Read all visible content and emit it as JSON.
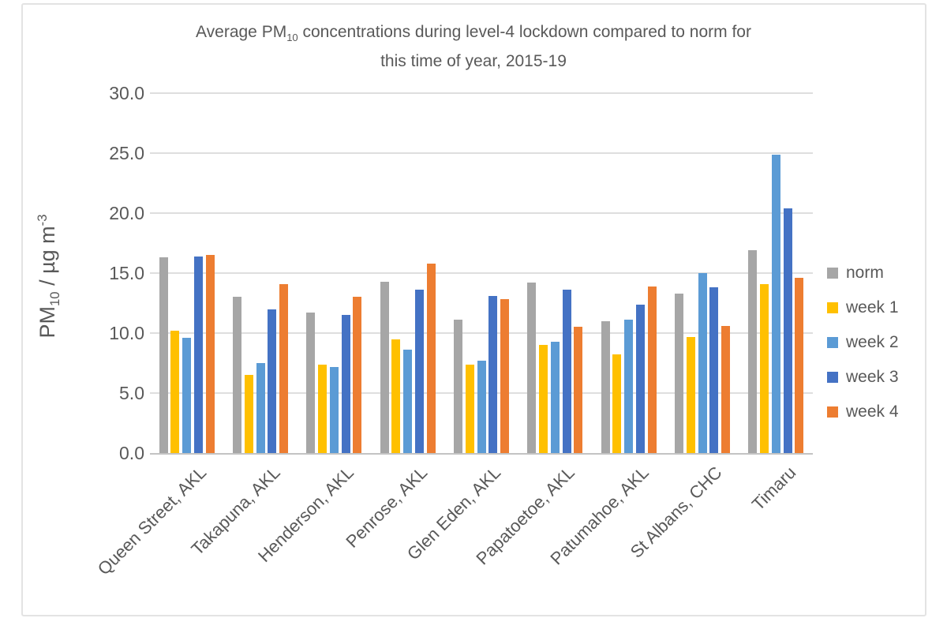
{
  "page": {
    "background": "#ffffff",
    "frame_border_color": "#e3e3e3",
    "text_color": "#595959",
    "gridline_color": "#dedede",
    "axis_line_color": "#c3c3c3"
  },
  "title": {
    "line1_prefix": "Average PM",
    "line1_sub": "10",
    "line1_rest": " concentrations during level-4 lockdown compared to norm for",
    "line2": "this time of year, 2015-19"
  },
  "y_axis": {
    "label_prefix": "PM",
    "label_sub": "10",
    "label_mid": " / µg m",
    "label_sup": "-3",
    "ticks": [
      "30.0",
      "25.0",
      "20.0",
      "15.0",
      "10.0",
      "5.0",
      "0.0"
    ]
  },
  "chart_data": {
    "type": "bar",
    "title": "Average PM10 concentrations during level-4 lockdown compared to norm for this time of year, 2015-19",
    "xlabel": "",
    "ylabel": "PM10 / µg m-3",
    "ylim": [
      0,
      30
    ],
    "ytick_step": 5,
    "grid": true,
    "legend_position": "right",
    "categories": [
      "Queen Street, AKL",
      "Takapuna, AKL",
      "Henderson, AKL",
      "Penrose, AKL",
      "Glen Eden, AKL",
      "Papatoetoe, AKL",
      "Patumahoe, AKL",
      "St Albans, CHC",
      "Timaru"
    ],
    "series": [
      {
        "name": "norm",
        "color": "#a6a6a6",
        "values": [
          16.3,
          13.0,
          11.7,
          14.3,
          11.1,
          14.2,
          11.0,
          13.3,
          16.9
        ]
      },
      {
        "name": "week 1",
        "color": "#ffc000",
        "values": [
          10.2,
          6.5,
          7.4,
          9.5,
          7.4,
          9.0,
          8.2,
          9.7,
          14.1
        ]
      },
      {
        "name": "week 2",
        "color": "#5b9bd5",
        "values": [
          9.6,
          7.5,
          7.2,
          8.6,
          7.7,
          9.3,
          11.1,
          15.0,
          24.9
        ]
      },
      {
        "name": "week 3",
        "color": "#4472c4",
        "values": [
          16.4,
          12.0,
          11.5,
          13.6,
          13.1,
          13.6,
          12.4,
          13.8,
          20.4
        ]
      },
      {
        "name": "week 4",
        "color": "#ed7d31",
        "values": [
          16.5,
          14.1,
          13.0,
          15.8,
          12.8,
          10.5,
          13.9,
          10.6,
          14.6
        ]
      }
    ]
  }
}
